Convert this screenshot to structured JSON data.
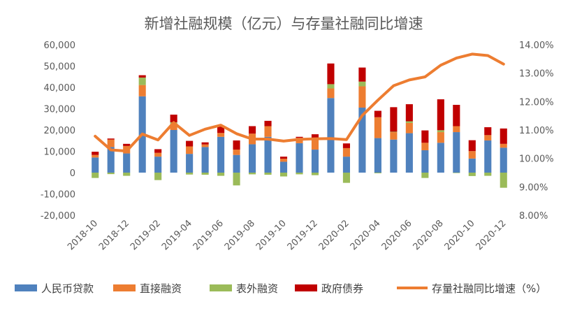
{
  "chart_data": {
    "type": "bar",
    "title": "新增社融规模（亿元）与存量社融同比增速",
    "x": [
      "2018-10",
      "2018-11",
      "2018-12",
      "2019-01",
      "2019-02",
      "2019-03",
      "2019-04",
      "2019-05",
      "2019-06",
      "2019-07",
      "2019-08",
      "2019-09",
      "2019-10",
      "2019-11",
      "2019-12",
      "2020-01",
      "2020-02",
      "2020-03",
      "2020-04",
      "2020-05",
      "2020-06",
      "2020-07",
      "2020-08",
      "2020-09",
      "2020-10",
      "2020-11",
      "2020-12"
    ],
    "x_tick_labels": [
      "2018-10",
      "2018-12",
      "2019-02",
      "2019-04",
      "2019-06",
      "2019-08",
      "2019-10",
      "2019-12",
      "2020-02",
      "2020-04",
      "2020-06",
      "2020-08",
      "2020-10",
      "2020-12"
    ],
    "y_left": {
      "min": -20000,
      "max": 60000,
      "step": 10000,
      "tick_labels": [
        "60,000",
        "50,000",
        "40,000",
        "30,000",
        "20,000",
        "10,000",
        "0",
        "-10,000",
        "-20,000"
      ]
    },
    "y_right": {
      "min": 8.0,
      "max": 14.0,
      "step": 1.0,
      "tick_labels": [
        "14.00%",
        "13.00%",
        "12.00%",
        "11.00%",
        "10.00%",
        "9.00%",
        "8.00%"
      ]
    },
    "series": [
      {
        "name": "人民币贷款",
        "kind": "bar",
        "color": "#4F81BD",
        "values": [
          7100,
          12000,
          9000,
          35800,
          7500,
          20000,
          8800,
          12000,
          16800,
          8300,
          13300,
          16800,
          5100,
          13800,
          10800,
          35000,
          7500,
          30500,
          16200,
          15500,
          18500,
          10500,
          14000,
          19000,
          6600,
          15100,
          11700
        ]
      },
      {
        "name": "直接融资",
        "kind": "bar",
        "color": "#ED7D31",
        "values": [
          1200,
          3500,
          3500,
          5300,
          1800,
          2800,
          3500,
          1200,
          1800,
          2500,
          5000,
          5000,
          1400,
          2500,
          4500,
          4500,
          4000,
          10000,
          9800,
          3500,
          4800,
          3500,
          5000,
          2800,
          3500,
          2500,
          1800
        ]
      },
      {
        "name": "表外融资",
        "kind": "bar",
        "color": "#9BBB59",
        "values": [
          -2500,
          -700,
          -1500,
          3500,
          -3500,
          800,
          -900,
          -1000,
          -1500,
          -6000,
          -800,
          -1000,
          -1800,
          -800,
          -1200,
          2000,
          -4800,
          2200,
          -300,
          200,
          800,
          -2500,
          900,
          -200,
          -1600,
          -1500,
          -7100
        ]
      },
      {
        "name": "政府债券",
        "kind": "bar",
        "color": "#C00000",
        "values": [
          1500,
          500,
          1000,
          1100,
          1700,
          3600,
          2600,
          1000,
          3000,
          4300,
          3500,
          2500,
          1000,
          500,
          2700,
          9700,
          2200,
          6600,
          3000,
          11500,
          8000,
          5800,
          14500,
          10000,
          5100,
          3700,
          7200
        ]
      },
      {
        "name": "存量社融同比增速（%）",
        "kind": "line",
        "axis": "right",
        "color": "#ED7D31",
        "values": [
          10.78,
          10.3,
          10.26,
          10.86,
          10.65,
          11.26,
          10.81,
          11.03,
          11.17,
          10.87,
          10.68,
          10.68,
          10.61,
          10.67,
          10.69,
          10.7,
          10.66,
          11.51,
          12.05,
          12.56,
          12.76,
          12.87,
          13.28,
          13.53,
          13.67,
          13.62,
          13.32
        ]
      }
    ],
    "colors": {
      "axis_text": "#595959",
      "grid": "none",
      "background": "#ffffff"
    },
    "legend_position": "bottom"
  }
}
